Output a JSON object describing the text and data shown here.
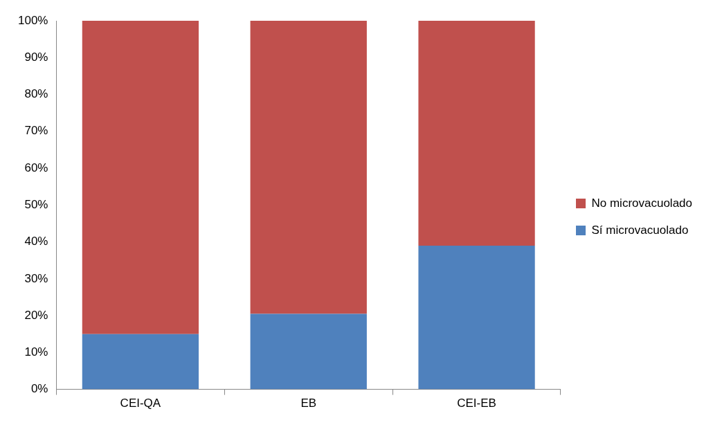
{
  "chart_data": {
    "type": "bar",
    "stacked": true,
    "categories": [
      "CEI-QA",
      "EB",
      "CEI-EB"
    ],
    "series": [
      {
        "name": "Sí microvacuolado",
        "color": "#4f81bd",
        "values": [
          15,
          20.5,
          39
        ]
      },
      {
        "name": "No microvacuolado",
        "color": "#c0504d",
        "values": [
          85,
          79.5,
          61
        ]
      }
    ],
    "ylim": [
      0,
      100
    ],
    "yticks": [
      {
        "value": 0,
        "label": "0%"
      },
      {
        "value": 10,
        "label": "10%"
      },
      {
        "value": 20,
        "label": "20%"
      },
      {
        "value": 30,
        "label": "30%"
      },
      {
        "value": 40,
        "label": "40%"
      },
      {
        "value": 50,
        "label": "50%"
      },
      {
        "value": 60,
        "label": "60%"
      },
      {
        "value": 70,
        "label": "70%"
      },
      {
        "value": 80,
        "label": "80%"
      },
      {
        "value": 90,
        "label": "90%"
      },
      {
        "value": 100,
        "label": "100%"
      }
    ],
    "grid": false,
    "legend": "right"
  }
}
